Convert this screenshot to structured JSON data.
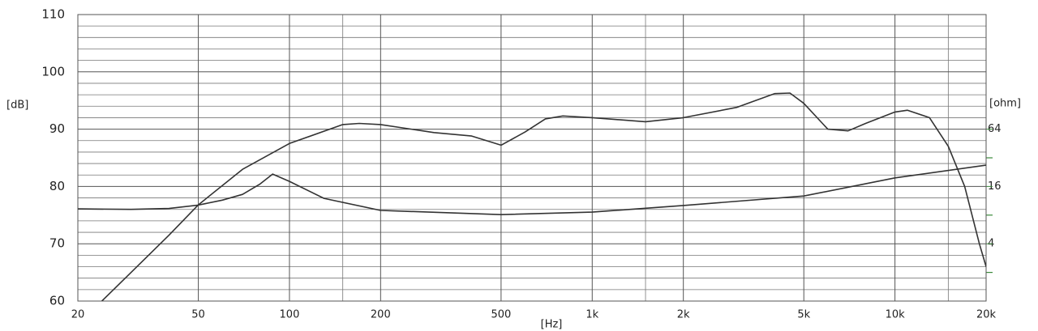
{
  "chart_data": {
    "type": "line",
    "xlabel": "[Hz]",
    "ylabel": "[dB]",
    "y2label": "[ohm]",
    "xscale": "log",
    "y2scale": "log",
    "xlim": [
      20,
      20000
    ],
    "ylim": [
      60,
      110
    ],
    "y2lim": [
      1,
      1024
    ],
    "xticks": [
      20,
      50,
      100,
      200,
      500,
      {
        "value": 1000,
        "label": "1k"
      },
      {
        "value": 2000,
        "label": "2k"
      },
      {
        "value": 5000,
        "label": "5k"
      },
      {
        "value": 10000,
        "label": "10k"
      },
      {
        "value": 20000,
        "label": "20k"
      }
    ],
    "xminorgrid": [
      150,
      1500,
      15000
    ],
    "yticks": [
      60,
      70,
      80,
      90,
      100,
      110
    ],
    "yminorgrid": [
      62,
      64,
      66,
      68,
      72,
      74,
      76,
      78,
      82,
      84,
      86,
      88,
      92,
      94,
      96,
      98,
      102,
      104,
      106,
      108
    ],
    "y2ticks": [
      4,
      16,
      64
    ],
    "y2minorticks": [
      2,
      8,
      32
    ],
    "grid": true,
    "series": [
      {
        "color": "#333333",
        "x": [
          24,
          30,
          40,
          50,
          70,
          100,
          150,
          170,
          200,
          300,
          400,
          500,
          600,
          700,
          800,
          1000,
          1500,
          2000,
          3000,
          4000,
          4500,
          5000,
          6000,
          7000,
          8000,
          10000,
          11000,
          13000,
          15000,
          17000,
          19000,
          20000
        ],
        "values": [
          60,
          65,
          71.5,
          76.8,
          83,
          87.5,
          90.8,
          91,
          90.8,
          89.4,
          88.8,
          87.2,
          89.5,
          91.8,
          92.3,
          92,
          91.3,
          92,
          93.8,
          96.2,
          96.3,
          94.5,
          90,
          89.7,
          91,
          93,
          93.3,
          92,
          87,
          80,
          70,
          66
        ]
      },
      {
        "color": "#333333",
        "axis": "y2",
        "x": [
          20,
          30,
          40,
          50,
          60,
          70,
          80,
          88,
          100,
          130,
          200,
          500,
          1000,
          2000,
          5000,
          10000,
          20000
        ],
        "values": [
          9.3,
          9.2,
          9.4,
          10.2,
          11.5,
          13.2,
          17,
          21.6,
          18.1,
          12,
          8.97,
          8.1,
          8.6,
          10.1,
          12.7,
          19.7,
          26.8
        ]
      }
    ]
  }
}
